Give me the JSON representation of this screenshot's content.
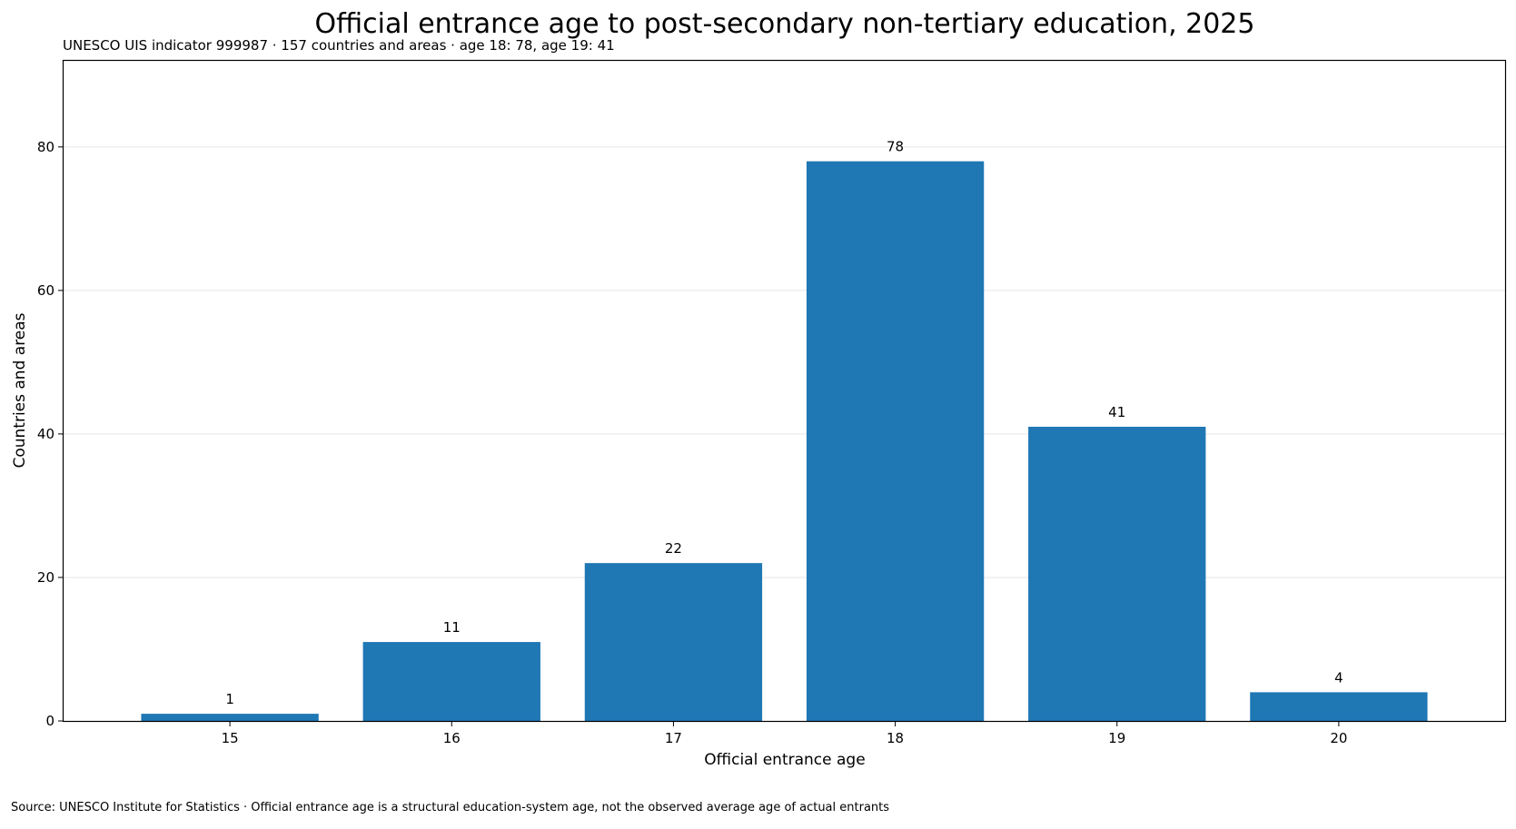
{
  "chart_data": {
    "type": "bar",
    "title": "Official entrance age to post-secondary non-tertiary education, 2025",
    "subtitle": "UNESCO UIS indicator 999987 · 157 countries and areas · age 18: 78, age 19: 41",
    "xlabel": "Official entrance age",
    "ylabel": "Countries and areas",
    "categories": [
      "15",
      "16",
      "17",
      "18",
      "19",
      "20"
    ],
    "values": [
      1,
      11,
      22,
      78,
      41,
      4
    ],
    "ylim": [
      0,
      92
    ],
    "yticks": [
      0,
      20,
      40,
      60,
      80
    ],
    "grid": "horizontal",
    "bar_color": "#1f77b4",
    "source": "Source: UNESCO Institute for Statistics · Official entrance age is a structural education-system age, not the observed average age of actual entrants"
  }
}
